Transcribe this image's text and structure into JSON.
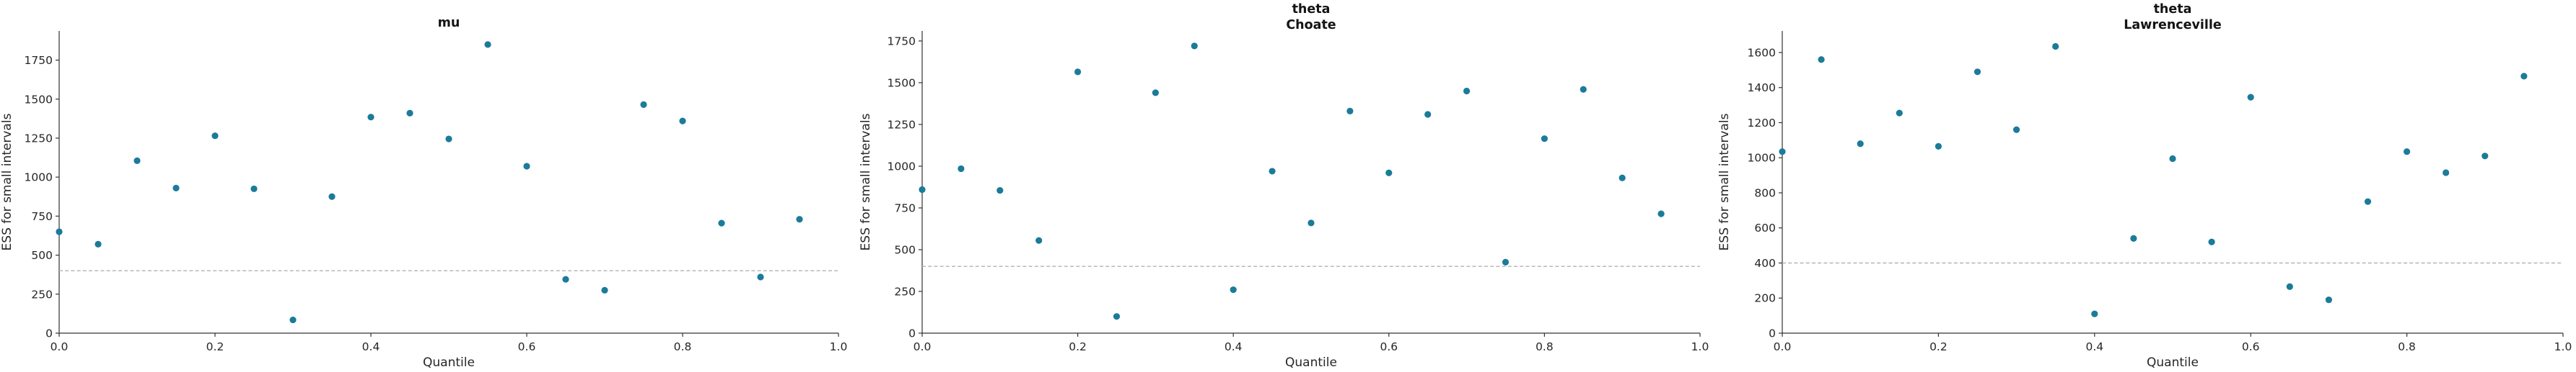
{
  "figure": {
    "background": "#ffffff",
    "n_subplots": 3
  },
  "style": {
    "dot_color": "#1b7b99",
    "axis_color": "#333333",
    "text_color": "#262626",
    "title_color": "#141414",
    "dashed_line_color": "#b3b3b3"
  },
  "chart_data": [
    {
      "type": "scatter",
      "title_lines": [
        "mu"
      ],
      "xlabel": "Quantile",
      "ylabel": "ESS for small intervals",
      "x": [
        0.0,
        0.05,
        0.1,
        0.15,
        0.2,
        0.25,
        0.3,
        0.35,
        0.4,
        0.45,
        0.5,
        0.55,
        0.6,
        0.65,
        0.7,
        0.75,
        0.8,
        0.85,
        0.9,
        0.95
      ],
      "y": [
        650,
        570,
        1105,
        930,
        1265,
        925,
        85,
        875,
        1385,
        1410,
        1245,
        1850,
        1070,
        345,
        275,
        1465,
        1360,
        705,
        360,
        730
      ],
      "xlim": [
        0.0,
        1.0
      ],
      "ylim": [
        0,
        1937
      ],
      "xtick_labels": [
        "0.0",
        "0.2",
        "0.4",
        "0.6",
        "0.8",
        "1.0"
      ],
      "xticks": [
        0.0,
        0.2,
        0.4,
        0.6,
        0.8,
        1.0
      ],
      "yticks": [
        0,
        250,
        500,
        750,
        1000,
        1250,
        1500,
        1750
      ],
      "hline": 400,
      "grid": false,
      "legend": null
    },
    {
      "type": "scatter",
      "title_lines": [
        "theta",
        "Choate"
      ],
      "xlabel": "Quantile",
      "ylabel": "ESS for small intervals",
      "x": [
        0.0,
        0.05,
        0.1,
        0.15,
        0.2,
        0.25,
        0.3,
        0.35,
        0.4,
        0.45,
        0.5,
        0.55,
        0.6,
        0.65,
        0.7,
        0.75,
        0.8,
        0.85,
        0.9,
        0.95
      ],
      "y": [
        860,
        985,
        855,
        555,
        1565,
        100,
        1440,
        1720,
        260,
        970,
        660,
        1330,
        960,
        1310,
        1450,
        425,
        1165,
        1460,
        930,
        715
      ],
      "xlim": [
        0.0,
        1.0
      ],
      "ylim": [
        0,
        1810
      ],
      "xtick_labels": [
        "0.0",
        "0.2",
        "0.4",
        "0.6",
        "0.8",
        "1.0"
      ],
      "xticks": [
        0.0,
        0.2,
        0.4,
        0.6,
        0.8,
        1.0
      ],
      "yticks": [
        0,
        250,
        500,
        750,
        1000,
        1250,
        1500,
        1750
      ],
      "hline": 400,
      "grid": false,
      "legend": null
    },
    {
      "type": "scatter",
      "title_lines": [
        "theta",
        "Lawrenceville"
      ],
      "xlabel": "Quantile",
      "ylabel": "ESS for small intervals",
      "x": [
        0.0,
        0.05,
        0.1,
        0.15,
        0.2,
        0.25,
        0.3,
        0.35,
        0.4,
        0.45,
        0.5,
        0.55,
        0.6,
        0.65,
        0.7,
        0.75,
        0.8,
        0.85,
        0.9,
        0.95
      ],
      "y": [
        1035,
        1560,
        1080,
        1255,
        1065,
        1490,
        1160,
        1635,
        110,
        540,
        995,
        520,
        1345,
        265,
        190,
        750,
        1035,
        915,
        1010,
        1465
      ],
      "xlim": [
        0.0,
        1.0
      ],
      "ylim": [
        0,
        1723
      ],
      "xtick_labels": [
        "0.0",
        "0.2",
        "0.4",
        "0.6",
        "0.8",
        "1.0"
      ],
      "xticks": [
        0.0,
        0.2,
        0.4,
        0.6,
        0.8,
        1.0
      ],
      "yticks": [
        0,
        200,
        400,
        600,
        800,
        1000,
        1200,
        1400,
        1600
      ],
      "hline": 400,
      "grid": false,
      "legend": null
    }
  ]
}
